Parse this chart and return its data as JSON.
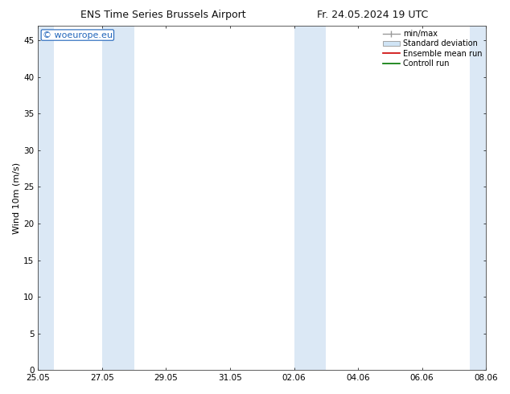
{
  "title_left": "ENS Time Series Brussels Airport",
  "title_right": "Fr. 24.05.2024 19 UTC",
  "ylabel": "Wind 10m (m/s)",
  "ylim": [
    0,
    47
  ],
  "yticks": [
    0,
    5,
    10,
    15,
    20,
    25,
    30,
    35,
    40,
    45
  ],
  "xtick_labels": [
    "25.05",
    "27.05",
    "29.05",
    "31.05",
    "02.06",
    "04.06",
    "06.06",
    "08.06"
  ],
  "xmin": 0,
  "xmax": 14,
  "bg_color": "#ffffff",
  "plot_bg_color": "#ffffff",
  "shaded_band_color": "#dbe8f5",
  "shaded_bands": [
    [
      0.0,
      0.5
    ],
    [
      2.0,
      3.0
    ],
    [
      8.0,
      9.0
    ],
    [
      13.5,
      14.0
    ]
  ],
  "watermark_text": "© woeurope.eu",
  "watermark_color": "#2266bb",
  "legend_labels": [
    "min/max",
    "Standard deviation",
    "Ensemble mean run",
    "Controll run"
  ],
  "legend_minmax_color": "#999999",
  "legend_std_facecolor": "#d0e4f5",
  "legend_std_edgecolor": "#999999",
  "legend_ens_color": "#cc0000",
  "legend_ctrl_color": "#007700",
  "title_fontsize": 9,
  "ylabel_fontsize": 8,
  "tick_fontsize": 7.5,
  "legend_fontsize": 7,
  "watermark_fontsize": 8
}
